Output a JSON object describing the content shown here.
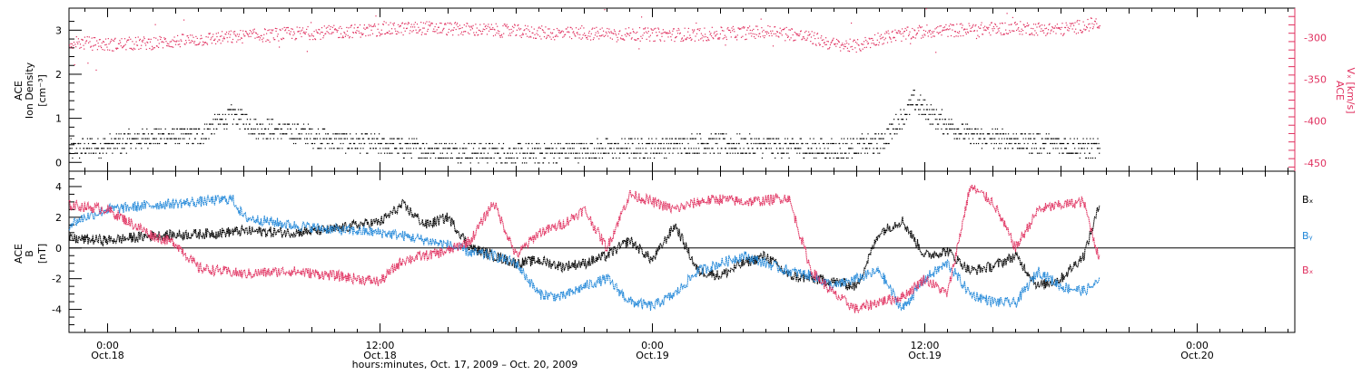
{
  "colors": {
    "black": "#000000",
    "pink": "#e0305f",
    "blue": "#1f86d8"
  },
  "time_axis": {
    "tick_labels": [
      {
        "time": "0:00",
        "date": "Oct.18",
        "hour": 24
      },
      {
        "time": "12:00",
        "date": "Oct.18",
        "hour": 36
      },
      {
        "time": "0:00",
        "date": "Oct.19",
        "hour": 48
      },
      {
        "time": "12:00",
        "date": "Oct.19",
        "hour": 60
      },
      {
        "time": "0:00",
        "date": "Oct.20",
        "hour": 72
      }
    ],
    "title": "hours:minutes, Oct. 17, 2009 – Oct. 20, 2009",
    "range_hours": [
      22.3,
      76.3
    ],
    "data_end_hours": 67.7
  },
  "chart_data": [
    {
      "type": "scatter",
      "panel": "top",
      "left_axis": {
        "label_lines": [
          "ACE",
          "Ion Density",
          "[cm⁻³]"
        ],
        "ylim": [
          -0.2,
          3.5
        ],
        "ticks": [
          0,
          1,
          2,
          3
        ]
      },
      "right_axis": {
        "label_lines": [
          "ACE",
          "Vₓ [km/s]"
        ],
        "ylim": [
          -460,
          -265
        ],
        "ticks": [
          -300,
          -350,
          -400,
          -450
        ]
      },
      "series": [
        {
          "color": "black",
          "axis": "left",
          "x_hours": [
            22.3,
            24,
            26,
            28,
            29.5,
            30.5,
            32,
            34,
            36,
            38,
            40,
            42,
            44,
            46,
            48,
            50,
            52,
            54,
            56,
            58,
            58.8,
            59.5,
            60.5,
            62,
            64,
            66,
            67.7
          ],
          "y": [
            0.3,
            0.4,
            0.6,
            0.6,
            1.1,
            0.8,
            0.7,
            0.5,
            0.4,
            0.3,
            0.25,
            0.2,
            0.25,
            0.3,
            0.35,
            0.45,
            0.4,
            0.35,
            0.3,
            0.45,
            0.9,
            1.4,
            1.0,
            0.6,
            0.5,
            0.4,
            0.3
          ]
        },
        {
          "color": "pink",
          "axis": "right",
          "x_hours": [
            22.3,
            24,
            26,
            28,
            30,
            32,
            34,
            36,
            38,
            40,
            42,
            44,
            46,
            48,
            50,
            52,
            53.5,
            55,
            56,
            57,
            58,
            60,
            62,
            64,
            66,
            67.7
          ],
          "y": [
            -305,
            -308,
            -306,
            -302,
            -298,
            -295,
            -293,
            -290,
            -288,
            -290,
            -292,
            -295,
            -295,
            -296,
            -296,
            -294,
            -292,
            -300,
            -308,
            -310,
            -300,
            -292,
            -290,
            -288,
            -290,
            -282
          ]
        }
      ]
    },
    {
      "type": "line",
      "panel": "bottom",
      "left_axis": {
        "label_lines": [
          "ACE",
          "B",
          "[nT]"
        ],
        "ylim": [
          -5.5,
          5.0
        ],
        "ticks": [
          4,
          2,
          0,
          -2,
          -4
        ]
      },
      "zero_line": true,
      "series": [
        {
          "name": "Bₓ",
          "color": "black",
          "x_hours": [
            22.3,
            24,
            26,
            28,
            30,
            32,
            34,
            35,
            36,
            37,
            38,
            39,
            40,
            41,
            42,
            43,
            44,
            45,
            46,
            47,
            48,
            49,
            50,
            51,
            52,
            53,
            54,
            55,
            56,
            57,
            58,
            59,
            60,
            61,
            62,
            63,
            64,
            65,
            66,
            67,
            67.7
          ],
          "y": [
            0.6,
            0.5,
            0.8,
            0.9,
            1.1,
            1.0,
            1.2,
            1.5,
            1.7,
            2.8,
            1.5,
            2.0,
            0.0,
            -0.5,
            -1.0,
            -0.8,
            -1.2,
            -1.0,
            -0.5,
            0.5,
            -0.8,
            1.5,
            -1.5,
            -1.8,
            -1.0,
            -0.5,
            -1.8,
            -2.0,
            -2.2,
            -2.5,
            1.0,
            1.8,
            -0.5,
            -0.2,
            -1.5,
            -1.2,
            -0.5,
            -2.5,
            -2.0,
            -0.5,
            2.8
          ]
        },
        {
          "name": "Bᵧ",
          "color": "blue",
          "x_hours": [
            22.3,
            23,
            24,
            26,
            28,
            29.5,
            30,
            32,
            34,
            36,
            37,
            38,
            39,
            40,
            41,
            42,
            43,
            44,
            45,
            46,
            47,
            48,
            49,
            50,
            51,
            52,
            53,
            54,
            55,
            56,
            57,
            58,
            59,
            60,
            61,
            62,
            63,
            64,
            65,
            66,
            67,
            67.7
          ],
          "y": [
            1.5,
            2.0,
            2.5,
            2.8,
            3.0,
            3.2,
            2.0,
            1.5,
            1.2,
            1.0,
            0.8,
            0.5,
            0.2,
            -0.3,
            -0.5,
            -1.0,
            -3.0,
            -3.2,
            -2.5,
            -2.0,
            -3.5,
            -3.8,
            -3.0,
            -1.5,
            -1.0,
            -0.5,
            -1.0,
            -1.5,
            -1.8,
            -2.5,
            -2.0,
            -1.5,
            -4.0,
            -2.0,
            -1.0,
            -3.0,
            -3.5,
            -3.6,
            -1.5,
            -2.5,
            -2.8,
            -2.2
          ]
        },
        {
          "name": "Bₓ",
          "color": "pink",
          "x_hours": [
            22.3,
            24,
            26,
            27,
            28,
            30,
            32,
            34,
            35,
            36,
            37,
            38,
            39,
            40,
            41,
            42,
            43,
            44,
            45,
            46,
            47,
            48,
            49,
            50,
            51,
            52,
            53,
            54,
            55,
            56,
            57,
            58,
            59,
            60,
            61,
            62,
            63,
            64,
            65,
            66,
            67,
            67.7
          ],
          "y": [
            2.8,
            2.5,
            0.8,
            0.3,
            -1.3,
            -1.7,
            -1.5,
            -1.8,
            -2.0,
            -2.2,
            -0.8,
            -0.5,
            -0.2,
            0.5,
            3.0,
            -0.5,
            1.0,
            1.5,
            2.5,
            0.0,
            3.5,
            3.0,
            2.5,
            3.0,
            3.2,
            3.0,
            3.1,
            3.3,
            -1.5,
            -3.0,
            -4.0,
            -3.5,
            -3.2,
            -2.0,
            -3.0,
            4.0,
            3.0,
            0.0,
            2.5,
            2.8,
            3.0,
            -0.8
          ]
        }
      ]
    }
  ]
}
